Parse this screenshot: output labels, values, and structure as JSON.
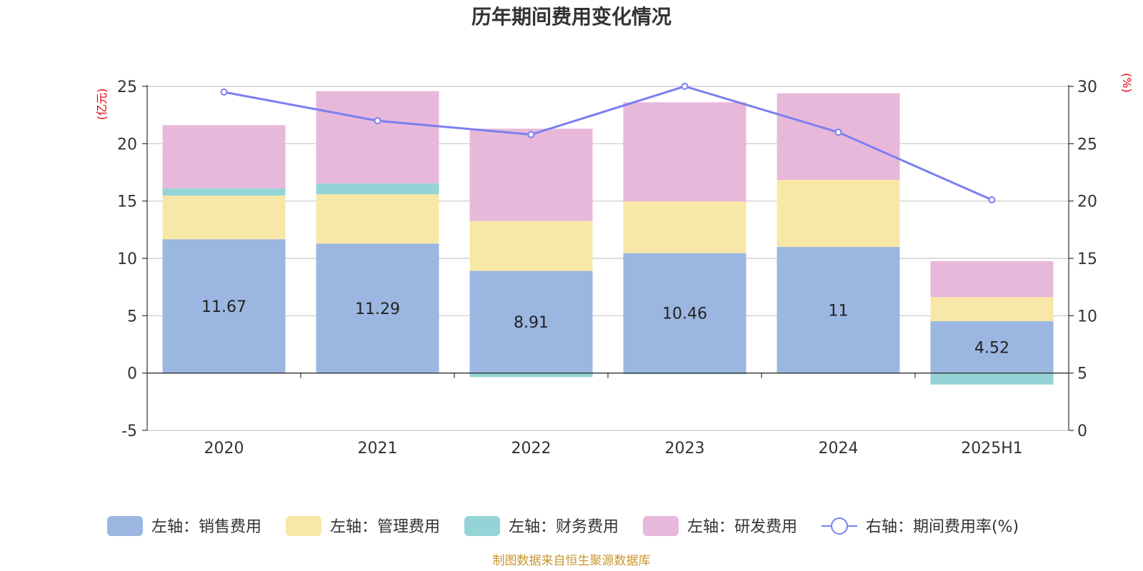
{
  "chart_data": {
    "type": "bar",
    "title": "历年期间费用变化情况",
    "categories": [
      "2020",
      "2021",
      "2022",
      "2023",
      "2024",
      "2025H1"
    ],
    "left_axis": {
      "unit": "(亿元)",
      "ylim": [
        -5,
        25
      ],
      "ticks": [
        -5,
        0,
        5,
        10,
        15,
        20,
        25
      ]
    },
    "right_axis": {
      "unit": "(%)",
      "ylim": [
        0,
        30
      ],
      "ticks": [
        0,
        5,
        10,
        15,
        20,
        25,
        30
      ]
    },
    "series": [
      {
        "name": "左轴：销售费用",
        "type": "bar",
        "axis": "left",
        "color": "#9bb7e1",
        "values": [
          11.67,
          11.29,
          8.91,
          10.46,
          11,
          4.52
        ],
        "labels": [
          "11.67",
          "11.29",
          "8.91",
          "10.46",
          "11",
          "4.52"
        ]
      },
      {
        "name": "左轴：管理费用",
        "type": "bar",
        "axis": "left",
        "color": "#f8e8a8",
        "values": [
          3.8,
          4.3,
          4.35,
          4.5,
          5.85,
          2.1
        ]
      },
      {
        "name": "左轴：财务费用",
        "type": "bar",
        "axis": "left",
        "color": "#95d4d6",
        "values": [
          0.65,
          0.95,
          -0.35,
          -0.1,
          -0.05,
          -1.0
        ]
      },
      {
        "name": "左轴：研发费用",
        "type": "bar",
        "axis": "left",
        "color": "#e8b8da",
        "values": [
          5.5,
          8.05,
          8.05,
          8.65,
          7.55,
          3.15
        ]
      },
      {
        "name": "右轴：期间费用率(%)",
        "type": "line",
        "axis": "right",
        "color": "#7b7ff0",
        "values": [
          29.5,
          27.0,
          25.8,
          30.0,
          26.0,
          20.1
        ]
      }
    ],
    "grid": true,
    "legend_position": "bottom"
  },
  "source_note": "制图数据来自恒生聚源数据库"
}
